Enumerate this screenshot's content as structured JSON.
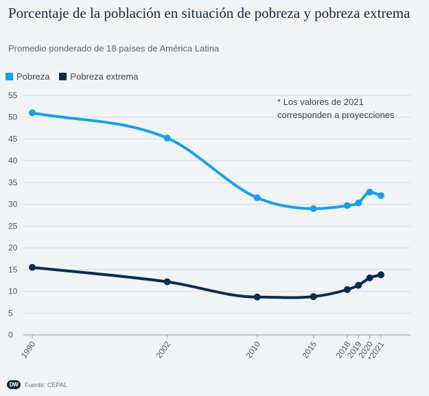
{
  "header": {
    "title": "Porcentaje de la población en situación de pobreza y pobreza extrema",
    "subtitle": "Promedio ponderado de 18 países de América Latina"
  },
  "note": {
    "line1": "* Los valores de 2021",
    "line2": "corresponden a proyecciones"
  },
  "footer": {
    "logo_text": "DW",
    "source": "Fuente: CEPAL"
  },
  "chart_data": {
    "type": "line",
    "x_tick_labels": [
      "1990",
      "2002",
      "2010",
      "2015",
      "2018",
      "2019",
      "2020",
      "*2021"
    ],
    "x": [
      1990,
      2002,
      2010,
      2015,
      2018,
      2019,
      2020,
      2021
    ],
    "ylim": [
      0,
      55
    ],
    "yticks": [
      0,
      5,
      10,
      15,
      20,
      25,
      30,
      35,
      40,
      45,
      50,
      55
    ],
    "grid": true,
    "legend_position": "top-left",
    "series": [
      {
        "name": "Pobreza",
        "color": "#1aa0e8",
        "values": [
          51.0,
          45.2,
          31.5,
          29.0,
          29.7,
          30.3,
          32.8,
          32.0
        ]
      },
      {
        "name": "Pobreza extrema",
        "color": "#0d2a4f",
        "values": [
          15.5,
          12.2,
          8.7,
          8.8,
          10.4,
          11.4,
          13.1,
          13.8
        ]
      }
    ]
  }
}
